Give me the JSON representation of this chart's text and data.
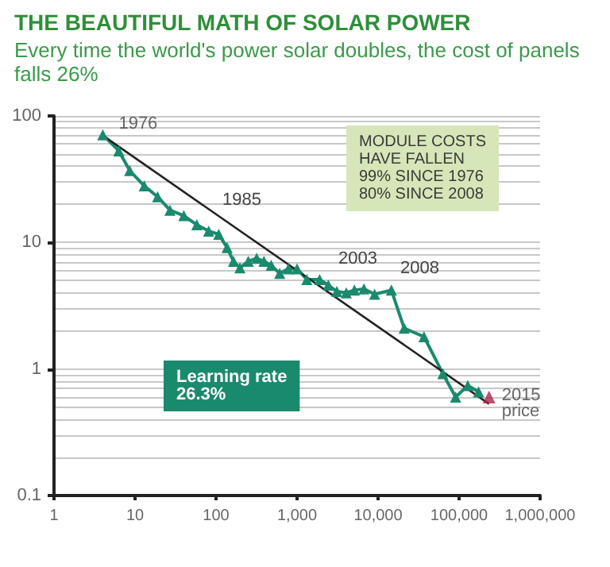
{
  "chart_data": {
    "type": "line",
    "title": "THE BEAUTIFUL MATH OF SOLAR POWER",
    "subtitle": "Every time the world's power solar doubles, the cost of panels falls 26%",
    "log": "xy",
    "xlim": [
      1,
      1000000
    ],
    "ylim": [
      0.1,
      100
    ],
    "xticks": [
      1,
      10,
      100,
      {
        "value": 1000,
        "label": "1,000"
      },
      {
        "value": 10000,
        "label": "10,000"
      },
      {
        "value": 100000,
        "label": "100,000"
      },
      {
        "value": 1000000,
        "label": "1,000,000"
      }
    ],
    "yticks": [
      0.1,
      1,
      10,
      100
    ],
    "grid": "y",
    "series": [
      {
        "color": "#1a8a6e",
        "marker": "triangle",
        "x": [
          4,
          6.3,
          8.6,
          13,
          19,
          27,
          40,
          58,
          81,
          108,
          137,
          164,
          197,
          250,
          317,
          390,
          480,
          610,
          780,
          1000,
          1320,
          1900,
          2430,
          3100,
          4040,
          5100,
          6700,
          9060,
          14600,
          21000,
          36900,
          63000,
          90600,
          128000,
          174000
        ],
        "values": [
          71,
          53,
          37,
          28,
          23,
          18,
          16.3,
          13.8,
          12.3,
          11.6,
          9.1,
          7.1,
          6.3,
          7.1,
          7.5,
          7.1,
          6.6,
          5.7,
          6.2,
          6.2,
          5.1,
          5.1,
          4.6,
          4.1,
          4.0,
          4.2,
          4.3,
          3.9,
          4.2,
          2.1,
          1.8,
          0.92,
          0.6,
          0.74,
          0.66
        ]
      },
      {
        "type": "scatter",
        "color": "#b0224a",
        "marker": "triangle",
        "x": [
          234000
        ],
        "values": [
          0.6
        ]
      },
      {
        "type": "line",
        "color": "#222222",
        "marker": "none",
        "x": [
          4,
          234000
        ],
        "values": [
          70,
          0.53
        ]
      }
    ],
    "annotations": [
      {
        "text": "1976",
        "x": 4,
        "y": 71
      },
      "1985",
      "2003",
      "2008",
      {
        "text": "2015\nprice",
        "x": 234000,
        "y": 0.6
      },
      "MODULE COSTS\nHAVE FALLEN\n99% SINCE 1976\n80% SINCE 2008",
      "Learning rate\n26.3%"
    ]
  }
}
